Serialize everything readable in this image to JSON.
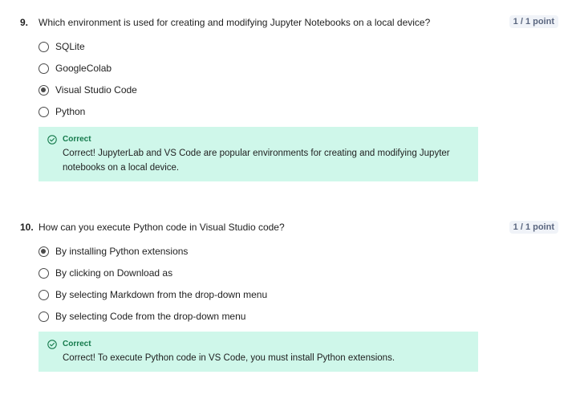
{
  "questions": [
    {
      "number": "9.",
      "text": "Which environment is used for creating and modifying Jupyter Notebooks on a local device?",
      "points": "1 / 1 point",
      "options": [
        {
          "label": "SQLite",
          "selected": false
        },
        {
          "label": "GoogleColab",
          "selected": false
        },
        {
          "label": "Visual Studio Code",
          "selected": true
        },
        {
          "label": "Python",
          "selected": false
        }
      ],
      "feedback": {
        "icon": "check-circle-icon",
        "title": "Correct",
        "text": "Correct! JupyterLab and VS Code are popular environments for creating and modifying Jupyter notebooks on a local device."
      }
    },
    {
      "number": "10.",
      "text": "How can you execute Python code in Visual Studio code?",
      "points": "1 / 1 point",
      "options": [
        {
          "label": "By installing Python extensions",
          "selected": true
        },
        {
          "label": "By clicking on Download as",
          "selected": false
        },
        {
          "label": "By selecting Markdown from the drop-down menu",
          "selected": false
        },
        {
          "label": "By selecting Code from the drop-down menu",
          "selected": false
        }
      ],
      "feedback": {
        "icon": "check-circle-icon",
        "title": "Correct",
        "text": "Correct! To execute Python code in VS Code, you must install Python extensions."
      }
    }
  ],
  "colors": {
    "feedback_bg": "#cff7ea",
    "correct_green": "#157a4c",
    "points_text": "#5b6780"
  }
}
